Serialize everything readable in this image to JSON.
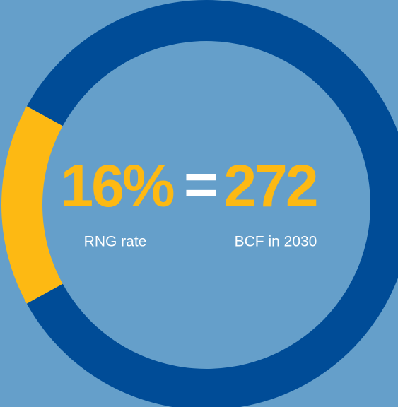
{
  "chart_data": {
    "type": "donut",
    "values": [
      16,
      84
    ],
    "value_labels": [
      "16%",
      null
    ],
    "colors": [
      "#fdb913",
      "#004c97"
    ],
    "annotations": [
      "=",
      "272",
      "RNG rate",
      "BCF in 2030"
    ]
  }
}
